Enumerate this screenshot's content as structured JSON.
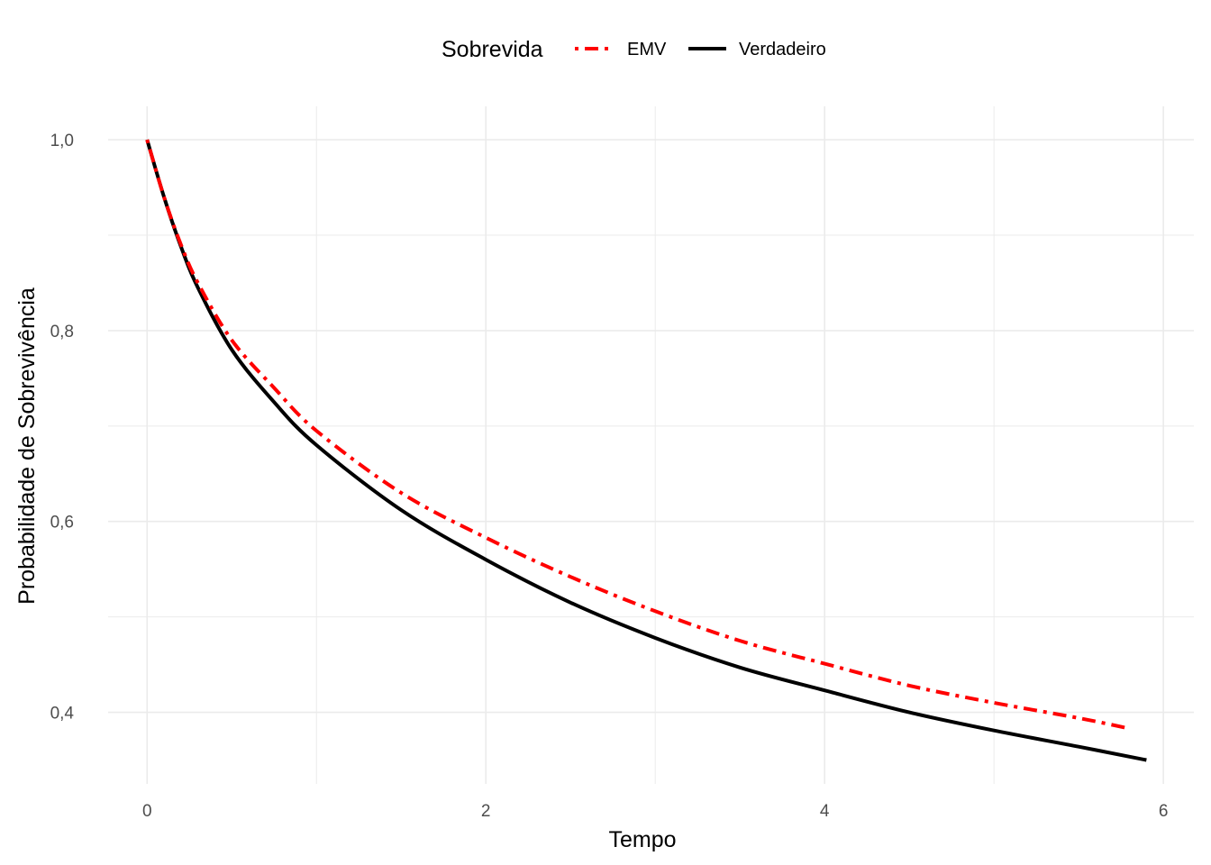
{
  "chart_data": {
    "type": "line",
    "xlabel": "Tempo",
    "ylabel": "Probabilidade de Sobrevivência",
    "xlim": [
      -0.23,
      6.18
    ],
    "ylim": [
      0.325,
      1.035
    ],
    "x_ticks": [
      0,
      2,
      4,
      6
    ],
    "x_tick_labels": [
      "0",
      "2",
      "4",
      "6"
    ],
    "y_ticks": [
      0.4,
      0.6,
      0.8,
      1.0
    ],
    "y_tick_labels": [
      "0,4",
      "0,6",
      "0,8",
      "1,0"
    ],
    "grid": true,
    "legend": {
      "title": "Sobrevida",
      "position": "top",
      "entries": [
        "EMV",
        "Verdadeiro"
      ]
    },
    "series": [
      {
        "name": "EMV",
        "color": "#ff0000",
        "style": "dotdash",
        "x": [
          0,
          0.1,
          0.2,
          0.3,
          0.5,
          0.75,
          1.0,
          1.5,
          2.0,
          2.5,
          3.0,
          3.5,
          4.0,
          4.5,
          5.0,
          5.5,
          5.8
        ],
        "y": [
          1.0,
          0.94,
          0.89,
          0.85,
          0.79,
          0.74,
          0.695,
          0.63,
          0.583,
          0.542,
          0.506,
          0.475,
          0.451,
          0.428,
          0.41,
          0.394,
          0.383
        ]
      },
      {
        "name": "Verdadeiro",
        "color": "#000000",
        "style": "solid",
        "x": [
          0,
          0.1,
          0.2,
          0.3,
          0.5,
          0.75,
          1.0,
          1.5,
          2.0,
          2.5,
          3.0,
          3.5,
          4.0,
          4.5,
          5.0,
          5.5,
          5.9
        ],
        "y": [
          1.0,
          0.94,
          0.888,
          0.845,
          0.78,
          0.725,
          0.68,
          0.612,
          0.56,
          0.515,
          0.478,
          0.447,
          0.423,
          0.4,
          0.381,
          0.364,
          0.35
        ]
      }
    ]
  }
}
